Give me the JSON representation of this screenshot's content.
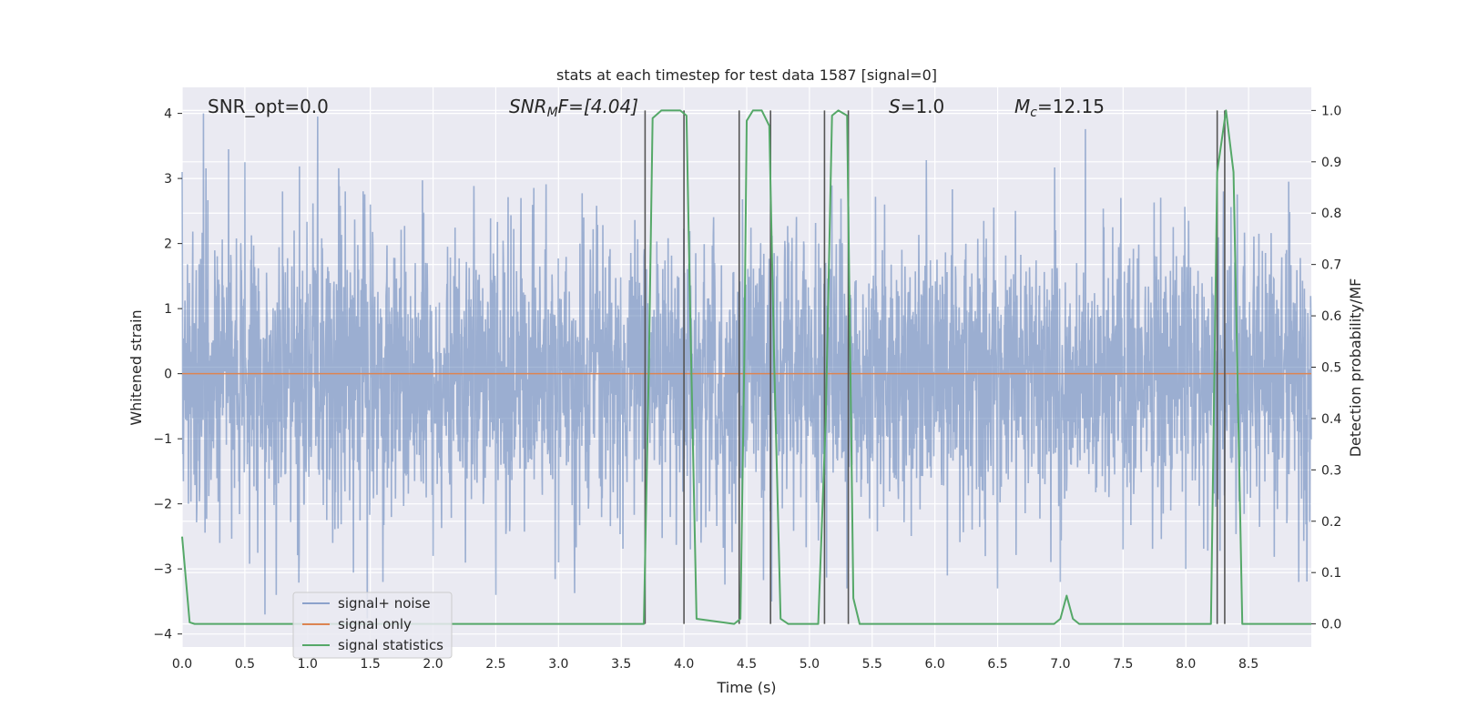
{
  "chart_data": {
    "type": "line",
    "title": "stats at each timestep for test data 1587 [signal=0]",
    "xlabel": "Time (s)",
    "ylabel": "Whitened strain",
    "y2label": "Detection probability/MF",
    "xlim": [
      0.0,
      9.0
    ],
    "ylim": [
      -4.2,
      4.4
    ],
    "y2lim": [
      -0.045,
      1.045
    ],
    "xticks": [
      "0.0",
      "0.5",
      "1.0",
      "1.5",
      "2.0",
      "2.5",
      "3.0",
      "3.5",
      "4.0",
      "4.5",
      "5.0",
      "5.5",
      "6.0",
      "6.5",
      "7.0",
      "7.5",
      "8.0",
      "8.5"
    ],
    "xtick_values": [
      0.0,
      0.5,
      1.0,
      1.5,
      2.0,
      2.5,
      3.0,
      3.5,
      4.0,
      4.5,
      5.0,
      5.5,
      6.0,
      6.5,
      7.0,
      7.5,
      8.0,
      8.5
    ],
    "yticks": [
      "4",
      "3",
      "2",
      "1",
      "0",
      "−1",
      "−2",
      "−3",
      "−4"
    ],
    "ytick_values": [
      4,
      3,
      2,
      1,
      0,
      -1,
      -2,
      -3,
      -4
    ],
    "y2ticks": [
      "1.0",
      "0.9",
      "0.8",
      "0.7",
      "0.6",
      "0.5",
      "0.4",
      "0.3",
      "0.2",
      "0.1",
      "0.0"
    ],
    "y2tick_values": [
      1.0,
      0.9,
      0.8,
      0.7,
      0.6,
      0.5,
      0.4,
      0.3,
      0.2,
      0.1,
      0.0
    ],
    "grid": true,
    "legend_position": "lower-left",
    "colors": {
      "noise": "#4c72b0",
      "signal": "#dd8452",
      "stats": "#55a868",
      "vlines": "#555555",
      "background": "#eaeaf2",
      "grid": "#ffffff"
    },
    "annotations": {
      "snr_opt": "SNR_opt=0.0",
      "snr_mf_main": "SNR",
      "snr_mf_sub": "M",
      "snr_mf_rest": "F=[4.04]",
      "s_main": "S",
      "s_rest": "=1.0",
      "mc_main": "M",
      "mc_sub": "c",
      "mc_rest": "=12.15"
    },
    "series": [
      {
        "name": "signal+ noise",
        "description_axis": "left",
        "envelope_typical": 1.7,
        "peak_samples": [
          [
            0.0,
            3.1
          ],
          [
            0.05,
            2.8
          ],
          [
            0.17,
            4.0
          ],
          [
            0.3,
            3.3
          ],
          [
            0.37,
            3.45
          ],
          [
            0.5,
            3.25
          ],
          [
            0.66,
            2.7
          ],
          [
            0.8,
            2.8
          ],
          [
            1.08,
            3.95
          ],
          [
            1.3,
            2.8
          ],
          [
            1.5,
            2.6
          ],
          [
            2.0,
            2.1
          ],
          [
            2.7,
            2.7
          ],
          [
            3.2,
            2.4
          ],
          [
            4.05,
            2.95
          ],
          [
            5.3,
            2.85
          ],
          [
            5.6,
            2.6
          ],
          [
            6.5,
            2.8
          ],
          [
            7.5,
            2.3
          ],
          [
            8.0,
            2.5
          ],
          [
            8.3,
            2.8
          ],
          [
            8.9,
            2.6
          ]
        ],
        "trough_samples": [
          [
            0.05,
            -2.0
          ],
          [
            0.3,
            -2.6
          ],
          [
            0.66,
            -3.7
          ],
          [
            0.75,
            -3.4
          ],
          [
            1.2,
            -2.6
          ],
          [
            1.6,
            -3.2
          ],
          [
            2.0,
            -2.8
          ],
          [
            2.5,
            -3.4
          ],
          [
            3.0,
            -2.9
          ],
          [
            4.05,
            -2.7
          ],
          [
            4.7,
            -3.5
          ],
          [
            5.3,
            -3.3
          ],
          [
            6.1,
            -3.1
          ],
          [
            6.5,
            -3.3
          ],
          [
            7.0,
            -3.2
          ],
          [
            7.5,
            -2.7
          ],
          [
            8.0,
            -3.0
          ],
          [
            8.9,
            -3.2
          ]
        ]
      },
      {
        "name": "signal only",
        "axis": "left",
        "x": [
          0.0,
          9.0
        ],
        "y": [
          0.0,
          0.0
        ]
      },
      {
        "name": "signal statistics",
        "axis": "right",
        "x": [
          0.0,
          0.06,
          0.1,
          3.68,
          3.72,
          3.75,
          3.82,
          3.97,
          4.02,
          4.05,
          4.1,
          4.4,
          4.45,
          4.48,
          4.5,
          4.55,
          4.62,
          4.68,
          4.72,
          4.77,
          4.83,
          5.07,
          5.13,
          5.18,
          5.23,
          5.3,
          5.35,
          5.4,
          5.45,
          6.95,
          7.0,
          7.05,
          7.1,
          7.15,
          8.2,
          8.25,
          8.32,
          8.38,
          8.45,
          8.5,
          9.0
        ],
        "y": [
          0.17,
          0.003,
          0.0,
          0.0,
          0.5,
          0.985,
          1.0,
          1.0,
          0.99,
          0.6,
          0.01,
          0.0,
          0.01,
          0.5,
          0.98,
          1.0,
          1.0,
          0.97,
          0.5,
          0.01,
          0.0,
          0.0,
          0.4,
          0.99,
          1.0,
          0.99,
          0.05,
          0.0,
          0.0,
          0.0,
          0.01,
          0.055,
          0.01,
          0.0,
          0.0,
          0.88,
          1.0,
          0.88,
          0.0,
          0.0,
          0.0
        ]
      }
    ],
    "vlines": [
      3.69,
      4.0,
      4.44,
      4.69,
      5.12,
      5.31,
      8.25,
      8.31
    ]
  }
}
